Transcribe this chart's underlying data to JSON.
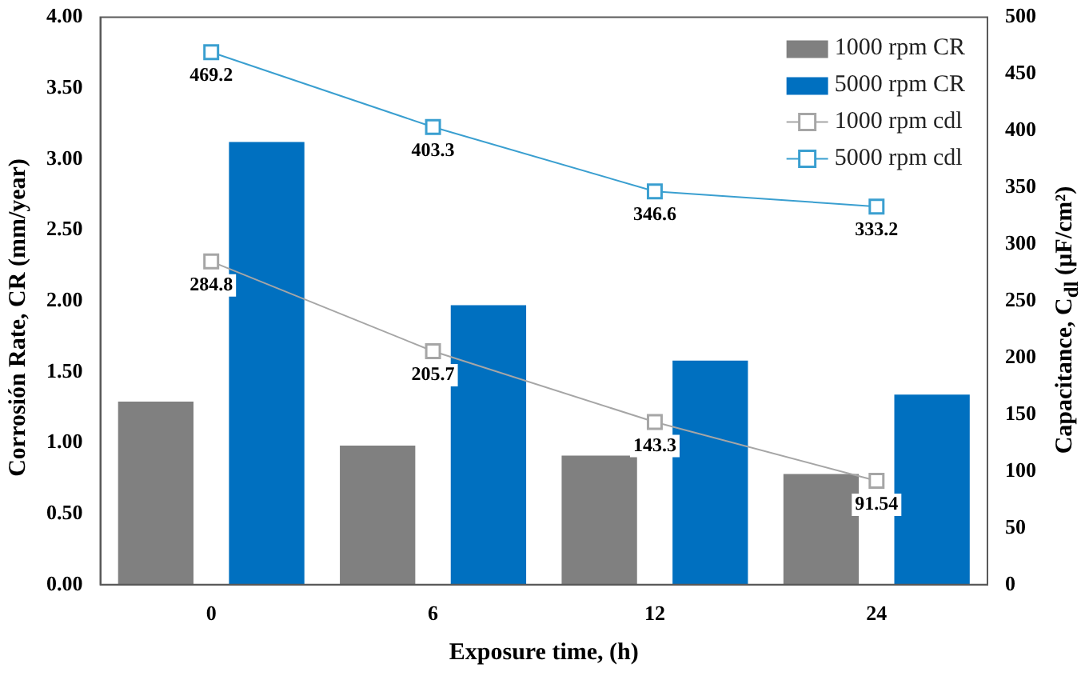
{
  "chart_data": {
    "type": "bar",
    "xlabel": "Exposure time, (h)",
    "ylabel": "Corrosión Rate, CR (mm/year)",
    "y2label": "Capacitance, C$_{dl}$ (µF/cm²)",
    "categories": [
      "0",
      "6",
      "12",
      "24"
    ],
    "series": [
      {
        "name": "1000 rpm CR",
        "color": "#808080",
        "values": [
          1.29,
          0.98,
          0.91,
          0.78
        ]
      },
      {
        "name": "5000 rpm CR",
        "color": "#0070c0",
        "values": [
          3.12,
          1.97,
          1.58,
          1.34
        ]
      },
      {
        "name": "1000 rpm cdl",
        "type": "line",
        "axis": "y2",
        "marker": "square",
        "color": "#a6a6a6",
        "values": [
          284.8,
          205.7,
          143.3,
          91.54
        ],
        "value_labels": [
          "284.8",
          "205.7",
          "143.3",
          "91.54"
        ]
      },
      {
        "name": "5000 rpm cdl",
        "type": "line",
        "axis": "y2",
        "marker": "square",
        "color": "#3a9fd0",
        "values": [
          469.2,
          403.3,
          346.6,
          333.2
        ],
        "value_labels": [
          "469.2",
          "403.3",
          "346.6",
          "333.2"
        ]
      }
    ],
    "ylim": [
      0,
      4
    ],
    "yticks": [
      {
        "value": 0,
        "label": "0.00"
      },
      {
        "value": 0.5,
        "label": "0.50"
      },
      {
        "value": 1,
        "label": "1.00"
      },
      {
        "value": 1.5,
        "label": "1.50"
      },
      {
        "value": 2,
        "label": "2.00"
      },
      {
        "value": 2.5,
        "label": "2.50"
      },
      {
        "value": 3,
        "label": "3.00"
      },
      {
        "value": 3.5,
        "label": "3.50"
      },
      {
        "value": 4,
        "label": "4.00"
      }
    ],
    "y2lim": [
      0,
      500
    ],
    "y2ticks": [
      0,
      50,
      100,
      150,
      200,
      250,
      300,
      350,
      400,
      450,
      500
    ],
    "legend": "top right"
  }
}
